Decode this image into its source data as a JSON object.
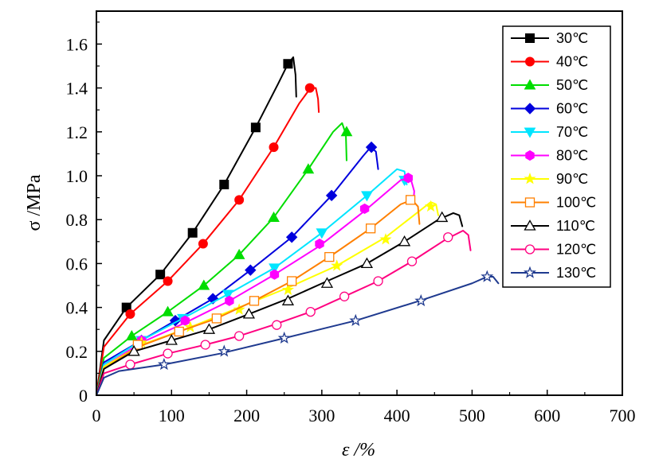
{
  "chart_data": {
    "type": "line",
    "title": "",
    "xlabel": "ε /%",
    "ylabel": "σ /MPa",
    "xlim": [
      0,
      700
    ],
    "ylim": [
      0,
      1.75
    ],
    "x_ticks": [
      "0",
      "100",
      "200",
      "300",
      "400",
      "500",
      "600",
      "700"
    ],
    "y_ticks": [
      "0",
      "0.2",
      "0.4",
      "0.6",
      "0.8",
      "1.0",
      "1.2",
      "1.4",
      "1.6"
    ],
    "grid": false,
    "legend_position": "top-right",
    "series": [
      {
        "name": "30℃",
        "color": "#000000",
        "marker": "square-filled",
        "points": [
          [
            0,
            0
          ],
          [
            10,
            0.25
          ],
          [
            40,
            0.4
          ],
          [
            85,
            0.55
          ],
          [
            128,
            0.74
          ],
          [
            170,
            0.96
          ],
          [
            212,
            1.22
          ],
          [
            242,
            1.42
          ],
          [
            255,
            1.51
          ],
          [
            262,
            1.54
          ],
          [
            265,
            1.46
          ],
          [
            266,
            1.36
          ]
        ],
        "markers": [
          [
            40,
            0.4
          ],
          [
            85,
            0.55
          ],
          [
            128,
            0.74
          ],
          [
            170,
            0.96
          ],
          [
            212,
            1.22
          ],
          [
            255,
            1.51
          ]
        ]
      },
      {
        "name": "40℃",
        "color": "#ff0000",
        "marker": "circle-filled",
        "points": [
          [
            0,
            0
          ],
          [
            10,
            0.22
          ],
          [
            45,
            0.37
          ],
          [
            95,
            0.52
          ],
          [
            142,
            0.69
          ],
          [
            190,
            0.89
          ],
          [
            236,
            1.13
          ],
          [
            270,
            1.33
          ],
          [
            285,
            1.4
          ],
          [
            292,
            1.4
          ],
          [
            295,
            1.35
          ],
          [
            296,
            1.29
          ]
        ],
        "markers": [
          [
            45,
            0.37
          ],
          [
            95,
            0.52
          ],
          [
            142,
            0.69
          ],
          [
            190,
            0.89
          ],
          [
            236,
            1.13
          ],
          [
            284,
            1.4
          ]
        ]
      },
      {
        "name": "50℃",
        "color": "#00dd00",
        "marker": "triangle-up-filled",
        "points": [
          [
            0,
            0
          ],
          [
            10,
            0.17
          ],
          [
            47,
            0.27
          ],
          [
            95,
            0.38
          ],
          [
            143,
            0.5
          ],
          [
            190,
            0.64
          ],
          [
            236,
            0.81
          ],
          [
            282,
            1.03
          ],
          [
            315,
            1.2
          ],
          [
            327,
            1.24
          ],
          [
            332,
            1.19
          ],
          [
            333,
            1.07
          ]
        ],
        "markers": [
          [
            47,
            0.27
          ],
          [
            95,
            0.38
          ],
          [
            143,
            0.5
          ],
          [
            190,
            0.64
          ],
          [
            236,
            0.81
          ],
          [
            282,
            1.03
          ],
          [
            333,
            1.2
          ]
        ]
      },
      {
        "name": "60℃",
        "color": "#0000dd",
        "marker": "diamond-filled",
        "points": [
          [
            0,
            0
          ],
          [
            10,
            0.15
          ],
          [
            60,
            0.25
          ],
          [
            105,
            0.34
          ],
          [
            155,
            0.44
          ],
          [
            205,
            0.57
          ],
          [
            260,
            0.72
          ],
          [
            313,
            0.91
          ],
          [
            355,
            1.09
          ],
          [
            365,
            1.13
          ],
          [
            372,
            1.11
          ],
          [
            375,
            1.03
          ]
        ],
        "markers": [
          [
            60,
            0.25
          ],
          [
            105,
            0.34
          ],
          [
            155,
            0.44
          ],
          [
            205,
            0.57
          ],
          [
            260,
            0.72
          ],
          [
            313,
            0.91
          ],
          [
            366,
            1.13
          ]
        ]
      },
      {
        "name": "70℃",
        "color": "#00e5ff",
        "marker": "triangle-down-filled",
        "points": [
          [
            0,
            0
          ],
          [
            10,
            0.14
          ],
          [
            60,
            0.25
          ],
          [
            115,
            0.35
          ],
          [
            175,
            0.46
          ],
          [
            237,
            0.58
          ],
          [
            300,
            0.74
          ],
          [
            360,
            0.91
          ],
          [
            400,
            1.03
          ],
          [
            410,
            1.02
          ],
          [
            413,
            0.96
          ]
        ],
        "markers": [
          [
            60,
            0.25
          ],
          [
            115,
            0.35
          ],
          [
            175,
            0.46
          ],
          [
            237,
            0.58
          ],
          [
            300,
            0.74
          ],
          [
            360,
            0.91
          ],
          [
            410,
            0.98
          ]
        ]
      },
      {
        "name": "80℃",
        "color": "#ff00ff",
        "marker": "hexagon-filled",
        "points": [
          [
            0,
            0
          ],
          [
            10,
            0.13
          ],
          [
            60,
            0.24
          ],
          [
            118,
            0.33
          ],
          [
            177,
            0.43
          ],
          [
            237,
            0.55
          ],
          [
            297,
            0.68
          ],
          [
            357,
            0.84
          ],
          [
            405,
            0.98
          ],
          [
            418,
            0.99
          ],
          [
            423,
            0.93
          ],
          [
            422,
            0.88
          ]
        ],
        "markers": [
          [
            60,
            0.25
          ],
          [
            118,
            0.34
          ],
          [
            177,
            0.43
          ],
          [
            237,
            0.55
          ],
          [
            297,
            0.69
          ],
          [
            357,
            0.85
          ],
          [
            415,
            0.99
          ]
        ]
      },
      {
        "name": "90℃",
        "color": "#ffff00",
        "marker": "star-filled",
        "points": [
          [
            0,
            0
          ],
          [
            10,
            0.13
          ],
          [
            60,
            0.23
          ],
          [
            125,
            0.31
          ],
          [
            190,
            0.4
          ],
          [
            255,
            0.49
          ],
          [
            320,
            0.59
          ],
          [
            385,
            0.72
          ],
          [
            430,
            0.84
          ],
          [
            445,
            0.88
          ],
          [
            452,
            0.87
          ],
          [
            455,
            0.82
          ]
        ],
        "markers": [
          [
            60,
            0.24
          ],
          [
            125,
            0.31
          ],
          [
            190,
            0.39
          ],
          [
            255,
            0.48
          ],
          [
            320,
            0.59
          ],
          [
            385,
            0.71
          ],
          [
            445,
            0.86
          ]
        ]
      },
      {
        "name": "100℃",
        "color": "#ff8000",
        "marker": "square-open",
        "points": [
          [
            0,
            0
          ],
          [
            10,
            0.12
          ],
          [
            55,
            0.22
          ],
          [
            110,
            0.29
          ],
          [
            160,
            0.35
          ],
          [
            210,
            0.43
          ],
          [
            260,
            0.52
          ],
          [
            310,
            0.63
          ],
          [
            365,
            0.76
          ],
          [
            405,
            0.87
          ],
          [
            420,
            0.89
          ],
          [
            428,
            0.86
          ],
          [
            430,
            0.78
          ]
        ],
        "markers": [
          [
            55,
            0.23
          ],
          [
            110,
            0.29
          ],
          [
            160,
            0.35
          ],
          [
            210,
            0.43
          ],
          [
            260,
            0.52
          ],
          [
            310,
            0.63
          ],
          [
            365,
            0.76
          ],
          [
            418,
            0.89
          ]
        ]
      },
      {
        "name": "110℃",
        "color": "#000000",
        "marker": "triangle-up-open",
        "points": [
          [
            0,
            0
          ],
          [
            10,
            0.12
          ],
          [
            50,
            0.2
          ],
          [
            100,
            0.25
          ],
          [
            150,
            0.3
          ],
          [
            203,
            0.37
          ],
          [
            255,
            0.44
          ],
          [
            307,
            0.52
          ],
          [
            360,
            0.6
          ],
          [
            410,
            0.7
          ],
          [
            455,
            0.8
          ],
          [
            475,
            0.83
          ],
          [
            483,
            0.82
          ],
          [
            487,
            0.77
          ]
        ],
        "markers": [
          [
            50,
            0.2
          ],
          [
            100,
            0.25
          ],
          [
            150,
            0.3
          ],
          [
            203,
            0.37
          ],
          [
            255,
            0.43
          ],
          [
            307,
            0.51
          ],
          [
            360,
            0.6
          ],
          [
            410,
            0.7
          ],
          [
            460,
            0.81
          ]
        ]
      },
      {
        "name": "120℃",
        "color": "#ff0080",
        "marker": "circle-open",
        "points": [
          [
            0,
            0
          ],
          [
            10,
            0.1
          ],
          [
            45,
            0.14
          ],
          [
            95,
            0.19
          ],
          [
            145,
            0.23
          ],
          [
            190,
            0.27
          ],
          [
            235,
            0.32
          ],
          [
            285,
            0.38
          ],
          [
            330,
            0.45
          ],
          [
            375,
            0.52
          ],
          [
            420,
            0.61
          ],
          [
            465,
            0.71
          ],
          [
            488,
            0.75
          ],
          [
            495,
            0.73
          ],
          [
            498,
            0.66
          ]
        ],
        "markers": [
          [
            45,
            0.14
          ],
          [
            95,
            0.19
          ],
          [
            145,
            0.23
          ],
          [
            190,
            0.27
          ],
          [
            240,
            0.32
          ],
          [
            285,
            0.38
          ],
          [
            330,
            0.45
          ],
          [
            375,
            0.52
          ],
          [
            420,
            0.61
          ],
          [
            468,
            0.72
          ]
        ]
      },
      {
        "name": "130℃",
        "color": "#1f3a8f",
        "marker": "star-open",
        "points": [
          [
            0,
            0
          ],
          [
            10,
            0.08
          ],
          [
            30,
            0.11
          ],
          [
            90,
            0.14
          ],
          [
            165,
            0.19
          ],
          [
            250,
            0.26
          ],
          [
            345,
            0.34
          ],
          [
            430,
            0.43
          ],
          [
            500,
            0.51
          ],
          [
            520,
            0.54
          ],
          [
            528,
            0.54
          ],
          [
            535,
            0.51
          ]
        ],
        "markers": [
          [
            90,
            0.14
          ],
          [
            170,
            0.2
          ],
          [
            250,
            0.26
          ],
          [
            345,
            0.34
          ],
          [
            432,
            0.43
          ],
          [
            520,
            0.54
          ]
        ]
      }
    ]
  }
}
